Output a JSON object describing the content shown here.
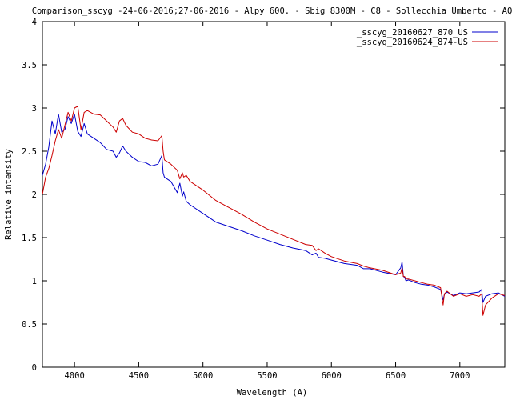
{
  "chart_data": {
    "type": "line",
    "title": "Comparison_sscyg -24-06-2016;27-06-2016 - Alpy 600. - Sbig 8300M -  C8  - Sollecchia Umberto - AQ",
    "xlabel": "Wavelength (A)",
    "ylabel": "Relative intensity",
    "xlim": [
      3750,
      7350
    ],
    "ylim": [
      0,
      4
    ],
    "xticks": [
      4000,
      4500,
      5000,
      5500,
      6000,
      6500,
      7000
    ],
    "yticks": [
      0,
      0.5,
      1,
      1.5,
      2,
      2.5,
      3,
      3.5,
      4
    ],
    "ytick_labels": [
      "0",
      "0.5",
      "1",
      "1.5",
      "2",
      "2.5",
      "3",
      "3.5",
      "4"
    ],
    "grid": false,
    "legend_position": "top-right",
    "series": [
      {
        "name": "_sscyg_20160627_870_US",
        "color": "#0000cc",
        "x": [
          3750,
          3775,
          3800,
          3825,
          3850,
          3875,
          3900,
          3925,
          3950,
          3975,
          4000,
          4025,
          4050,
          4075,
          4100,
          4150,
          4200,
          4250,
          4300,
          4325,
          4350,
          4375,
          4400,
          4450,
          4500,
          4550,
          4600,
          4650,
          4680,
          4690,
          4700,
          4750,
          4800,
          4820,
          4840,
          4850,
          4870,
          4900,
          5000,
          5100,
          5200,
          5300,
          5400,
          5500,
          5600,
          5700,
          5800,
          5850,
          5880,
          5900,
          5950,
          6000,
          6100,
          6200,
          6250,
          6300,
          6400,
          6500,
          6540,
          6550,
          6560,
          6570,
          6580,
          6600,
          6650,
          6700,
          6750,
          6800,
          6850,
          6870,
          6880,
          6900,
          6950,
          7000,
          7050,
          7100,
          7150,
          7170,
          7180,
          7200,
          7250,
          7300,
          7350
        ],
        "y": [
          2.22,
          2.35,
          2.55,
          2.85,
          2.7,
          2.93,
          2.72,
          2.75,
          2.9,
          2.82,
          2.93,
          2.73,
          2.67,
          2.82,
          2.7,
          2.65,
          2.6,
          2.52,
          2.5,
          2.43,
          2.48,
          2.56,
          2.5,
          2.43,
          2.38,
          2.37,
          2.33,
          2.35,
          2.45,
          2.25,
          2.2,
          2.15,
          2.02,
          2.13,
          1.98,
          2.03,
          1.92,
          1.88,
          1.78,
          1.68,
          1.63,
          1.58,
          1.52,
          1.47,
          1.42,
          1.38,
          1.35,
          1.3,
          1.32,
          1.27,
          1.26,
          1.24,
          1.2,
          1.18,
          1.14,
          1.14,
          1.1,
          1.07,
          1.15,
          1.22,
          1.05,
          1.04,
          1.0,
          1.01,
          0.98,
          0.96,
          0.95,
          0.93,
          0.9,
          0.78,
          0.84,
          0.87,
          0.83,
          0.86,
          0.85,
          0.86,
          0.87,
          0.9,
          0.75,
          0.82,
          0.85,
          0.86,
          0.82
        ]
      },
      {
        "name": "_sscyg_20160624_874-US",
        "color": "#cc0000",
        "x": [
          3750,
          3775,
          3800,
          3825,
          3850,
          3875,
          3900,
          3925,
          3950,
          3975,
          4000,
          4025,
          4050,
          4075,
          4100,
          4150,
          4200,
          4250,
          4300,
          4325,
          4350,
          4375,
          4400,
          4450,
          4500,
          4550,
          4600,
          4650,
          4680,
          4690,
          4700,
          4750,
          4800,
          4820,
          4840,
          4850,
          4870,
          4900,
          5000,
          5100,
          5200,
          5300,
          5400,
          5500,
          5600,
          5700,
          5800,
          5850,
          5880,
          5900,
          5950,
          6000,
          6100,
          6200,
          6250,
          6300,
          6400,
          6500,
          6540,
          6550,
          6560,
          6570,
          6580,
          6600,
          6650,
          6700,
          6750,
          6800,
          6850,
          6870,
          6880,
          6900,
          6950,
          7000,
          7050,
          7100,
          7150,
          7170,
          7180,
          7200,
          7250,
          7300,
          7350
        ],
        "y": [
          2.0,
          2.2,
          2.3,
          2.45,
          2.62,
          2.75,
          2.65,
          2.8,
          2.95,
          2.85,
          3.0,
          3.02,
          2.75,
          2.95,
          2.97,
          2.93,
          2.92,
          2.85,
          2.78,
          2.72,
          2.85,
          2.88,
          2.8,
          2.72,
          2.7,
          2.65,
          2.63,
          2.62,
          2.68,
          2.5,
          2.4,
          2.35,
          2.28,
          2.18,
          2.25,
          2.2,
          2.22,
          2.15,
          2.05,
          1.93,
          1.85,
          1.77,
          1.68,
          1.6,
          1.54,
          1.48,
          1.42,
          1.41,
          1.35,
          1.37,
          1.32,
          1.28,
          1.23,
          1.2,
          1.17,
          1.15,
          1.12,
          1.07,
          1.09,
          1.15,
          1.05,
          1.05,
          1.02,
          1.02,
          1.0,
          0.98,
          0.96,
          0.95,
          0.92,
          0.72,
          0.85,
          0.88,
          0.82,
          0.85,
          0.82,
          0.84,
          0.82,
          0.85,
          0.6,
          0.72,
          0.8,
          0.85,
          0.83
        ]
      }
    ]
  }
}
